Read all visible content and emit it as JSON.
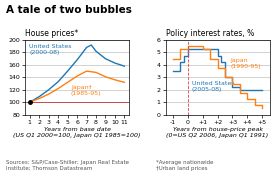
{
  "title": "A tale of two bubbles",
  "annotations": [
    "Sources: S&P/Case-Shiller; Japan Real Estate\nInstitute; Thomson Datastream",
    "*Average nationwide\n†Urban land prices"
  ],
  "chart_data": [
    {
      "type": "line",
      "title": "House prices*",
      "x_label": "Years from base date\n(US Q1 2000=100, Japan Q1 1985=100)",
      "series": [
        {
          "name": "United States\n(2000-08)",
          "x": [
            1,
            2,
            3,
            4,
            5,
            6,
            7,
            7.5,
            8,
            9,
            10,
            11
          ],
          "values": [
            100,
            109,
            120,
            133,
            150,
            168,
            188,
            192,
            182,
            170,
            163,
            158
          ]
        },
        {
          "name": "Japan†\n(1985-95)",
          "x": [
            1,
            2,
            3,
            4,
            5,
            6,
            7,
            8,
            9,
            10,
            11
          ],
          "values": [
            100,
            106,
            113,
            122,
            132,
            142,
            150,
            148,
            141,
            136,
            132
          ]
        }
      ],
      "reference_lines": [
        {
          "axis": "y",
          "value": 100,
          "color": "#cc3333",
          "line_style": "solid"
        }
      ],
      "base_point": {
        "x": 1,
        "y": 100
      },
      "xlim": [
        0.5,
        11.5
      ],
      "xticks": [
        1,
        2,
        3,
        4,
        5,
        6,
        7,
        8,
        9,
        10,
        11
      ],
      "ylim": [
        80,
        200
      ],
      "yticks": [
        80,
        100,
        120,
        140,
        160,
        180,
        200
      ],
      "grid": "y"
    },
    {
      "type": "step",
      "title": "Policy interest rates, %",
      "x_label": "Years from house-price peak\n(0=US Q2 2006, Japan Q1 1991)",
      "series": [
        {
          "name": "United States\n(2005-08)",
          "x": [
            -1.0,
            -0.75,
            -0.5,
            -0.25,
            0.0,
            0.5,
            1.0,
            1.5,
            2.0,
            2.25,
            2.5,
            3.0,
            3.5,
            4.0,
            4.5,
            5.0
          ],
          "values": [
            3.5,
            3.5,
            4.25,
            4.75,
            5.25,
            5.25,
            5.25,
            5.25,
            4.75,
            4.25,
            3.0,
            2.25,
            2.0,
            2.0,
            2.0,
            2.0
          ]
        },
        {
          "name": "Japan\n(1990-95)",
          "x": [
            -1.0,
            -0.5,
            0.0,
            0.5,
            1.0,
            1.5,
            2.0,
            2.5,
            3.0,
            3.5,
            4.0,
            4.5,
            5.0
          ],
          "values": [
            4.5,
            5.25,
            5.5,
            5.5,
            5.25,
            4.5,
            3.75,
            3.0,
            2.5,
            1.75,
            1.25,
            0.75,
            0.5
          ]
        }
      ],
      "reference_lines": [
        {
          "axis": "x",
          "value": 0,
          "color": "#dd4444",
          "line_style": "dashed"
        }
      ],
      "xlim": [
        -1.5,
        5.5
      ],
      "xticks": [
        -1,
        0,
        {
          "value": 1,
          "label": "+1"
        },
        {
          "value": 2,
          "label": "+2"
        },
        {
          "value": 3,
          "label": "+3"
        },
        {
          "value": 4,
          "label": "+4"
        },
        {
          "value": 5,
          "label": "+5"
        }
      ],
      "ylim": [
        0,
        6
      ],
      "yticks": [
        0,
        1,
        2,
        3,
        4,
        5,
        6
      ],
      "grid": "y"
    }
  ]
}
